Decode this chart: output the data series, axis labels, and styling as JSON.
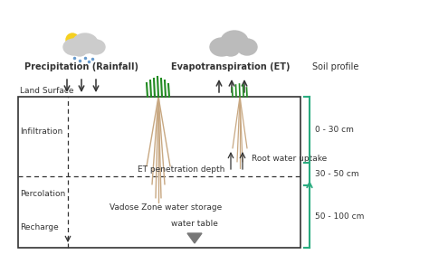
{
  "fig_width": 4.74,
  "fig_height": 2.92,
  "dpi": 100,
  "bg_color": "#ffffff",
  "box_color": "#333333",
  "text_color": "#333333",
  "green_color": "#2ca02c",
  "teal_color": "#2aab7f",
  "root_color": "#c8a882",
  "grey_color": "#888888",
  "labels": {
    "precipitation": "Precipitation (Rainfall)",
    "et": "Evapotranspiration (ET)",
    "soil_profile": "Soil profile",
    "land_surface": "Land Surface",
    "infiltration": "Infiltration",
    "root_water": "Root water uptake",
    "et_depth": "ET penetration depth",
    "percolation": "Percolation",
    "vadose": "Vadose Zone water storage",
    "recharge": "Recharge",
    "water_table": "water table",
    "depth1": "0 - 30 cm",
    "depth2": "30 - 50 cm",
    "depth3": "50 - 100 cm"
  }
}
